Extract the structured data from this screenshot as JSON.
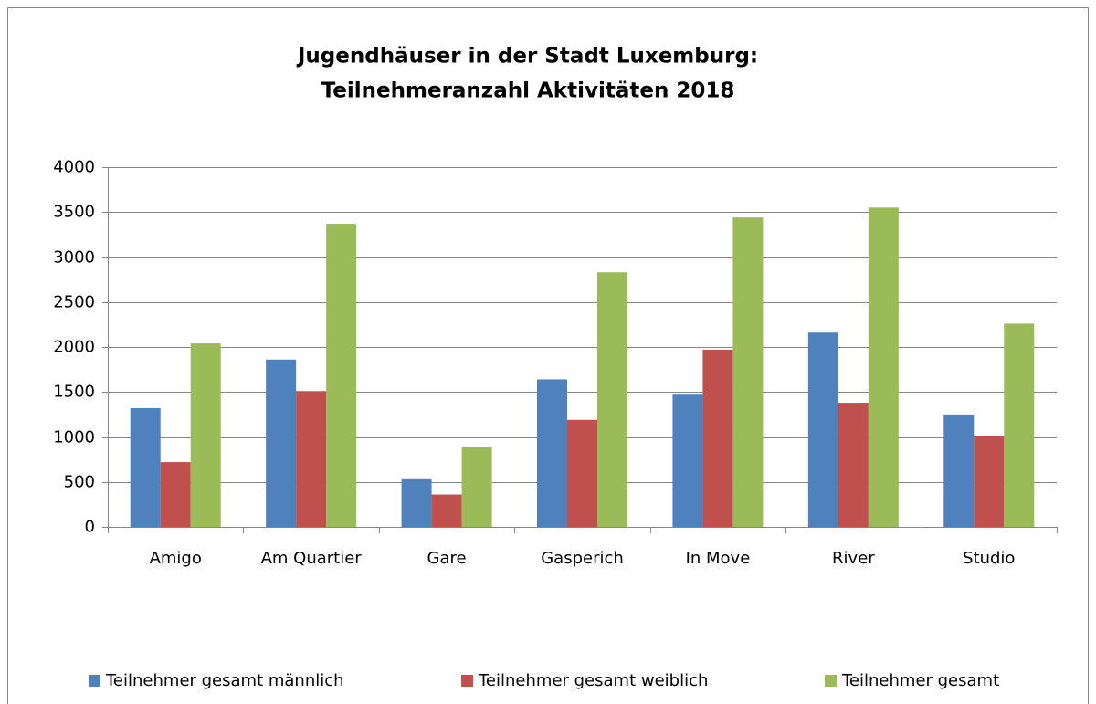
{
  "chart_data": {
    "type": "bar",
    "title": [
      "Jugendhäuser in der Stadt Luxemburg:",
      "Teilnehmeranzahl Aktivitäten 2018"
    ],
    "categories": [
      "Amigo",
      "Am Quartier",
      "Gare",
      "Gasperich",
      "In Move",
      "River",
      "Studio"
    ],
    "series": [
      {
        "name": "Teilnehmer gesamt männlich",
        "color": "#4f81bd",
        "values": [
          1320,
          1860,
          530,
          1640,
          1470,
          2160,
          1250
        ]
      },
      {
        "name": "Teilnehmer gesamt weiblich",
        "color": "#c0504d",
        "values": [
          720,
          1510,
          360,
          1190,
          1970,
          1380,
          1010
        ]
      },
      {
        "name": "Teilnehmer gesamt",
        "color": "#9bbb59",
        "values": [
          2040,
          3370,
          890,
          2830,
          3440,
          3550,
          2260
        ]
      }
    ],
    "ylim": [
      0,
      4000
    ],
    "yticks": [
      0,
      500,
      1000,
      1500,
      2000,
      2500,
      3000,
      3500,
      4000
    ],
    "grid": true,
    "legend": "bottom"
  }
}
